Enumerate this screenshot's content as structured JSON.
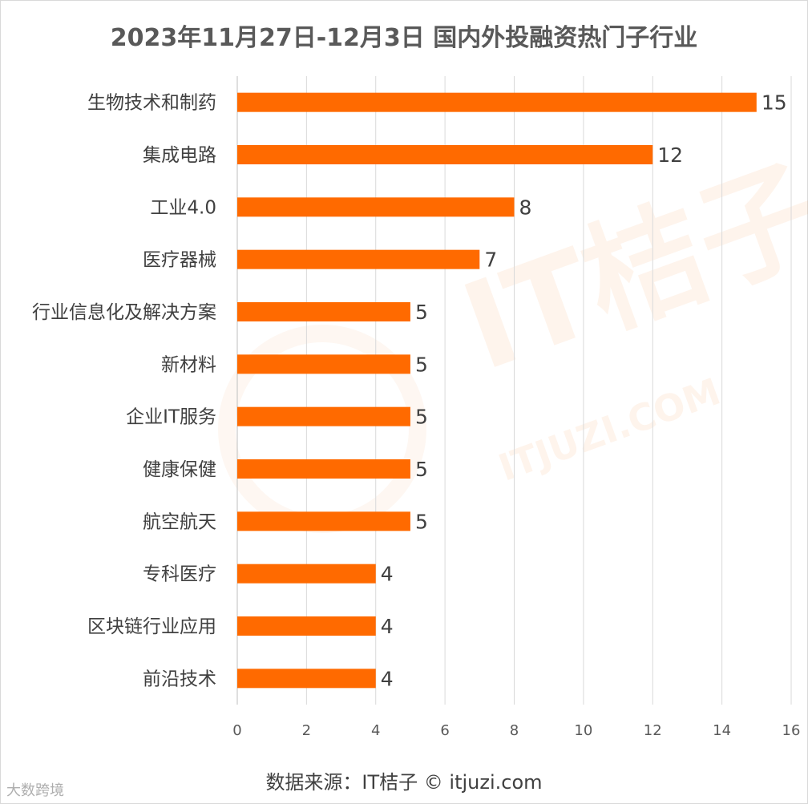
{
  "chart_data": {
    "type": "bar",
    "orientation": "horizontal",
    "title": "2023年11月27日-12月3日 国内外投融资热门子行业",
    "categories": [
      "生物技术和制药",
      "集成电路",
      "工业4.0",
      "医疗器械",
      "行业信息化及解决方案",
      "新材料",
      "企业IT服务",
      "健康保健",
      "航空航天",
      "专科医疗",
      "区块链行业应用",
      "前沿技术"
    ],
    "values": [
      15,
      12,
      8,
      7,
      5,
      5,
      5,
      5,
      5,
      4,
      4,
      4
    ],
    "xlim": [
      0,
      16
    ],
    "xticks": [
      0,
      2,
      4,
      6,
      8,
      10,
      12,
      14,
      16
    ],
    "grid": true,
    "bar_color": "#ff6a00",
    "xlabel": "",
    "ylabel": ""
  },
  "source": "数据来源：IT桔子 © itjuzi.com",
  "watermark": {
    "brand": "IT桔子",
    "url": "ITJUZI.COM",
    "corner": "大数跨境"
  }
}
